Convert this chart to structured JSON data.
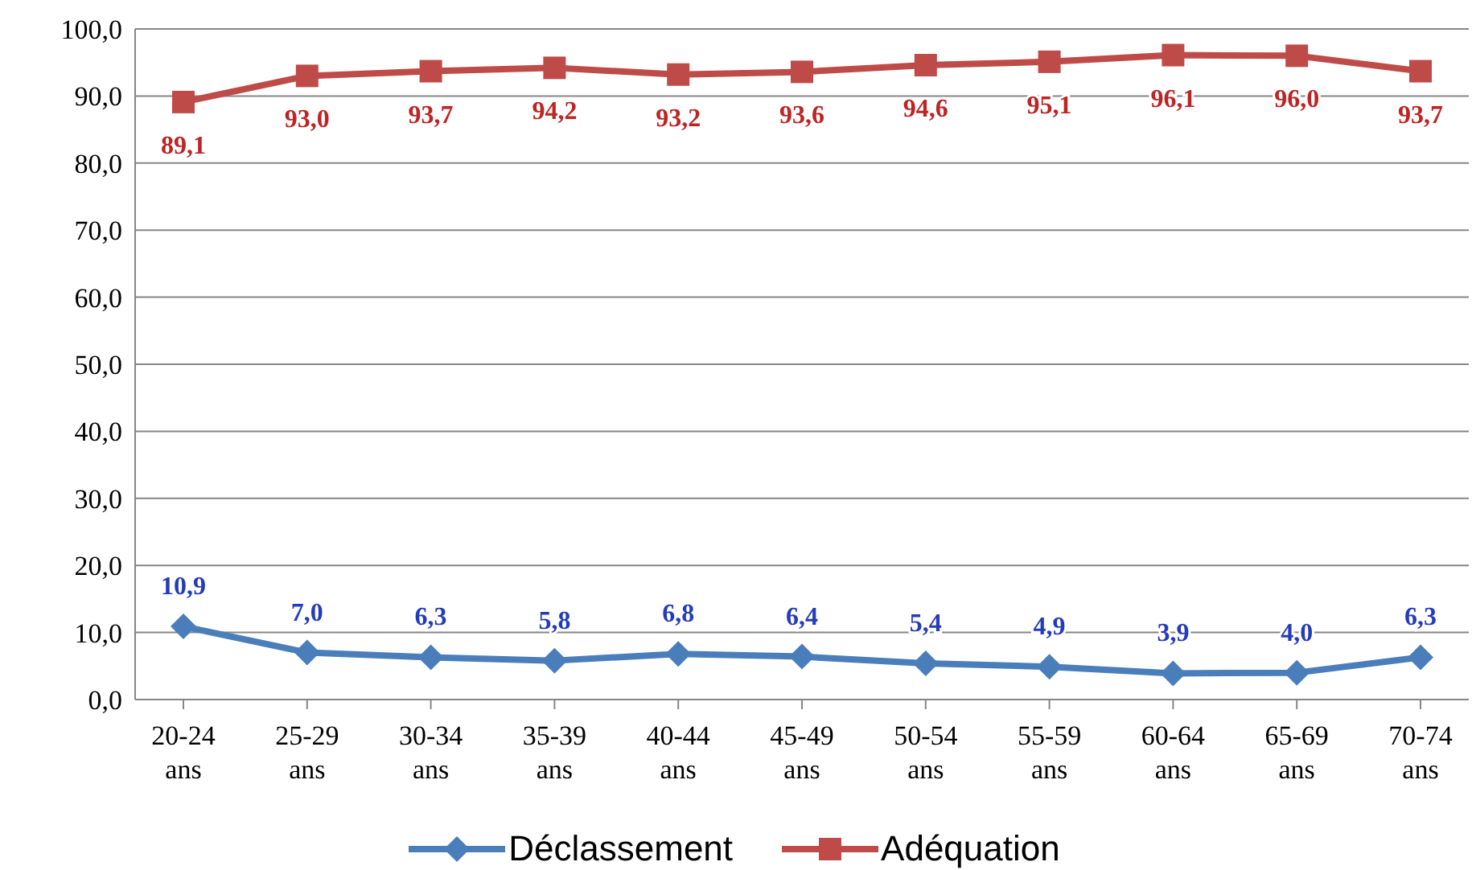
{
  "chart_data": {
    "type": "line",
    "categories": [
      "20-24 ans",
      "25-29 ans",
      "30-34 ans",
      "35-39 ans",
      "40-44 ans",
      "45-49 ans",
      "50-54 ans",
      "55-59 ans",
      "60-64 ans",
      "65-69 ans",
      "70-74 ans"
    ],
    "series": [
      {
        "name": "Déclassement",
        "color": "#4a7ebb",
        "marker": "diamond",
        "values": [
          10.9,
          7.0,
          6.3,
          5.8,
          6.8,
          6.4,
          5.4,
          4.9,
          3.9,
          4.0,
          6.3
        ],
        "value_labels": [
          "10,9",
          "7,0",
          "6,3",
          "5,8",
          "6,8",
          "6,4",
          "5,4",
          "4,9",
          "3,9",
          "4,0",
          "6,3"
        ]
      },
      {
        "name": "Adéquation",
        "color": "#be4b48",
        "marker": "square",
        "values": [
          89.1,
          93.0,
          93.7,
          94.2,
          93.2,
          93.6,
          94.6,
          95.1,
          96.1,
          96.0,
          93.7
        ],
        "value_labels": [
          "89,1",
          "93,0",
          "93,7",
          "94,2",
          "93,2",
          "93,6",
          "94,6",
          "95,1",
          "96,1",
          "96,0",
          "93,7"
        ]
      }
    ],
    "ylim": [
      0,
      100
    ],
    "yticks": [
      {
        "value": 0,
        "label": "0,0"
      },
      {
        "value": 10,
        "label": "10,0"
      },
      {
        "value": 20,
        "label": "20,0"
      },
      {
        "value": 30,
        "label": "30,0"
      },
      {
        "value": 40,
        "label": "40,0"
      },
      {
        "value": 50,
        "label": "50,0"
      },
      {
        "value": 60,
        "label": "60,0"
      },
      {
        "value": 70,
        "label": "70,0"
      },
      {
        "value": 80,
        "label": "80,0"
      },
      {
        "value": 90,
        "label": "90,0"
      },
      {
        "value": 100,
        "label": "100,0"
      }
    ],
    "grid": "y",
    "legend": "bottom",
    "line_style": "solid"
  }
}
